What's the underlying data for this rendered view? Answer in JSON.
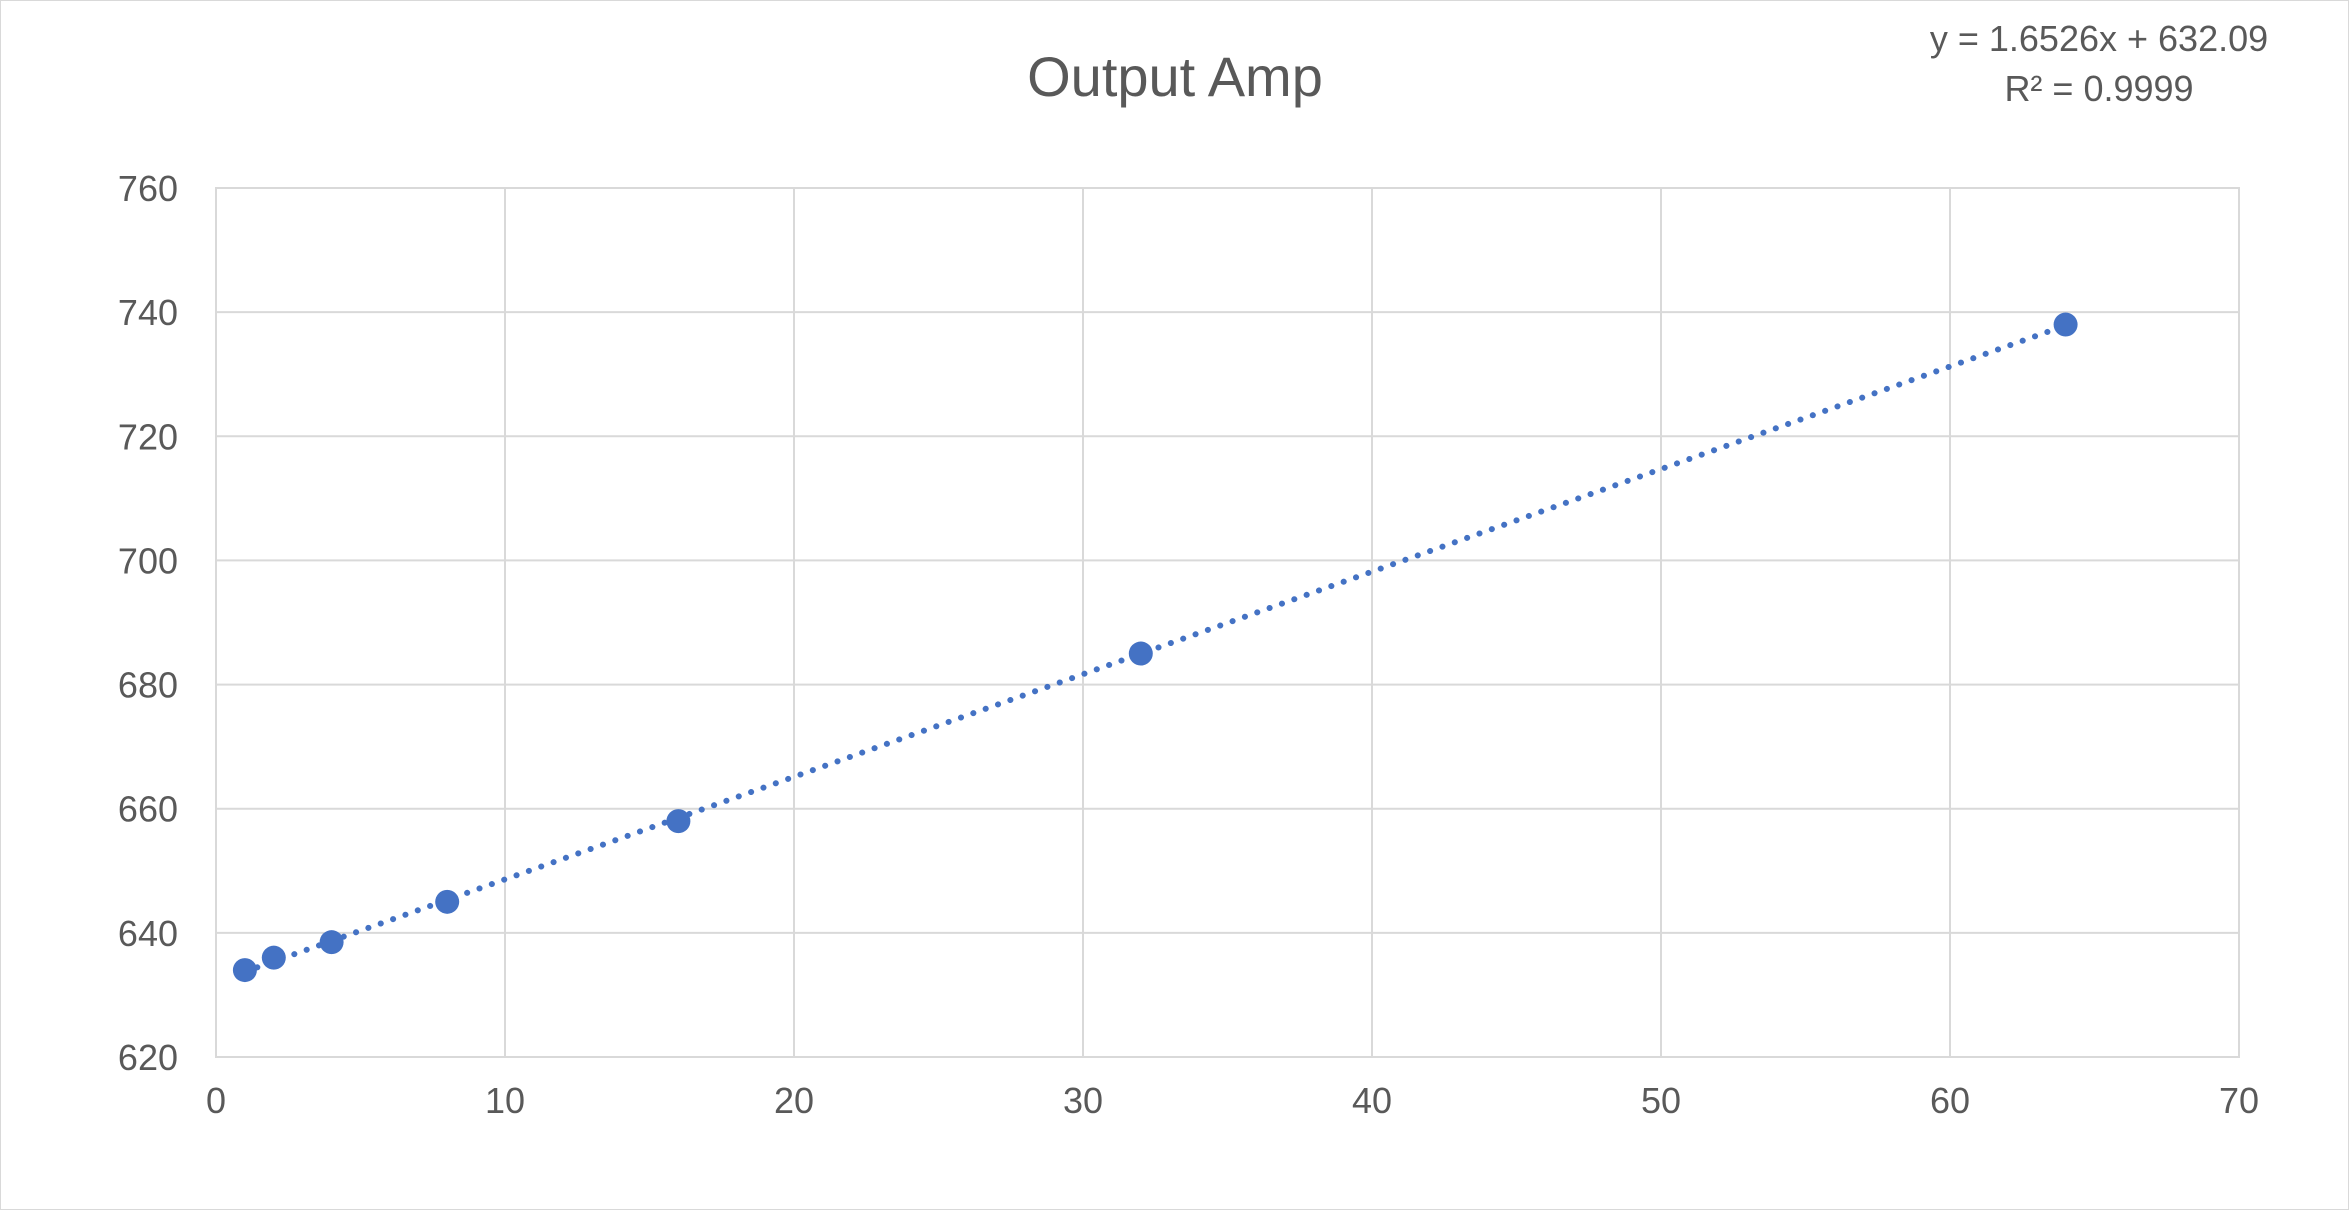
{
  "chart_data": {
    "type": "scatter",
    "title": "Output Amp",
    "xlabel": "",
    "ylabel": "",
    "xlim": [
      0,
      70
    ],
    "ylim": [
      620,
      760
    ],
    "x_ticks": [
      "0",
      "10",
      "20",
      "30",
      "40",
      "50",
      "60",
      "70"
    ],
    "y_ticks": [
      "620",
      "640",
      "660",
      "680",
      "700",
      "720",
      "740",
      "760"
    ],
    "grid": true,
    "legend": "none",
    "series": [
      {
        "x": [
          1,
          2,
          4,
          8,
          16,
          32,
          64
        ],
        "y": [
          634,
          636,
          638.5,
          645,
          658,
          685,
          738
        ],
        "color": "#4472C4"
      }
    ],
    "trendline": {
      "type": "linear",
      "slope": 1.6526,
      "intercept": 632.09,
      "equation": "y = 1.6526x + 632.09",
      "r_squared": "R² = 0.9999",
      "style": "dotted",
      "color": "#4472C4"
    }
  }
}
